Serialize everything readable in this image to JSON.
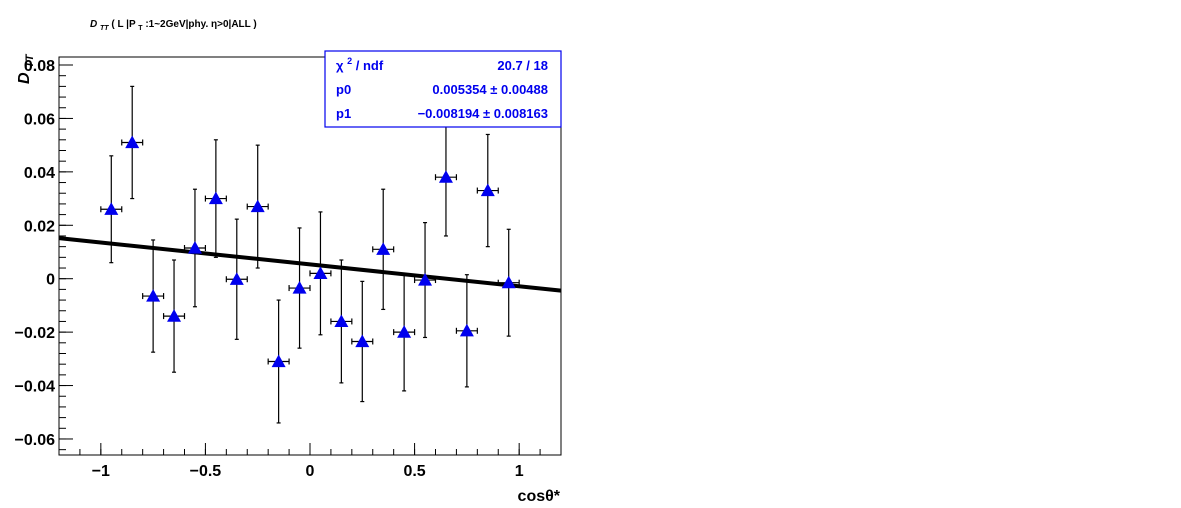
{
  "chart_data": {
    "type": "scatter",
    "title": {
      "symbol": "D",
      "symbol_sub": "TT",
      "text_a": " ( L |P",
      "text_a_sub": "T",
      "text_b": ":1~2GeV|phy.  η>0|ALL )"
    },
    "xlabel": "cosθ*",
    "ylabel": "D",
    "ylabel_sub": "TT",
    "xlim": [
      -1.2,
      1.2
    ],
    "ylim": [
      -0.066,
      0.083
    ],
    "xticks": [
      {
        "value": -1,
        "label": "−1"
      },
      {
        "value": -0.5,
        "label": "−0.5"
      },
      {
        "value": 0,
        "label": "0"
      },
      {
        "value": 0.5,
        "label": "0.5"
      },
      {
        "value": 1,
        "label": "1"
      }
    ],
    "yticks": [
      {
        "value": 0.08,
        "label": "0.08"
      },
      {
        "value": 0.06,
        "label": "0.06"
      },
      {
        "value": 0.04,
        "label": "0.04"
      },
      {
        "value": 0.02,
        "label": "0.02"
      },
      {
        "value": 0,
        "label": "0"
      },
      {
        "value": -0.02,
        "label": "−0.02"
      },
      {
        "value": -0.04,
        "label": "−0.04"
      },
      {
        "value": -0.06,
        "label": "−0.06"
      }
    ],
    "marker_color": "#0000ee",
    "errorbar_color": "#000000",
    "fit_color": "#000000",
    "x_error": 0.05,
    "points": [
      {
        "x": -0.95,
        "y": 0.026,
        "err": 0.02
      },
      {
        "x": -0.85,
        "y": 0.051,
        "err": 0.021
      },
      {
        "x": -0.75,
        "y": -0.0065,
        "err": 0.021
      },
      {
        "x": -0.65,
        "y": -0.014,
        "err": 0.021
      },
      {
        "x": -0.55,
        "y": 0.0115,
        "err": 0.022
      },
      {
        "x": -0.45,
        "y": 0.03,
        "err": 0.022
      },
      {
        "x": -0.35,
        "y": -0.0002,
        "err": 0.0225
      },
      {
        "x": -0.25,
        "y": 0.027,
        "err": 0.023
      },
      {
        "x": -0.15,
        "y": -0.031,
        "err": 0.023
      },
      {
        "x": -0.05,
        "y": -0.0035,
        "err": 0.0225
      },
      {
        "x": 0.05,
        "y": 0.002,
        "err": 0.023
      },
      {
        "x": 0.15,
        "y": -0.016,
        "err": 0.023
      },
      {
        "x": 0.25,
        "y": -0.0235,
        "err": 0.0225
      },
      {
        "x": 0.35,
        "y": 0.011,
        "err": 0.0225
      },
      {
        "x": 0.45,
        "y": -0.02,
        "err": 0.022
      },
      {
        "x": 0.55,
        "y": -0.0005,
        "err": 0.0215
      },
      {
        "x": 0.65,
        "y": 0.038,
        "err": 0.022
      },
      {
        "x": 0.75,
        "y": -0.0195,
        "err": 0.021
      },
      {
        "x": 0.85,
        "y": 0.033,
        "err": 0.021
      },
      {
        "x": 0.95,
        "y": -0.0015,
        "err": 0.02
      }
    ],
    "fit": {
      "p0": 0.005354,
      "p1": -0.008194,
      "x_range": [
        -1.2,
        1.2
      ]
    },
    "stats_box": {
      "border_color": "#0000ee",
      "text_color": "#0000ee",
      "rows": [
        {
          "label": "χ",
          "label_sup": "2",
          "label_rest": " / ndf",
          "value": "20.7 / 18"
        },
        {
          "label": "p0",
          "label_sup": "",
          "label_rest": "",
          "value": "0.005354 ± 0.00488"
        },
        {
          "label": "p1",
          "label_sup": "",
          "label_rest": "",
          "value": "−0.008194 ± 0.008163"
        }
      ]
    }
  }
}
